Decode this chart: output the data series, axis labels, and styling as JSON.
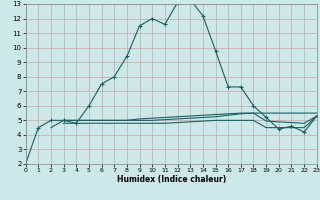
{
  "xlabel": "Humidex (Indice chaleur)",
  "bg_color": "#cce8e8",
  "grid_color": "#c8a8a8",
  "line_color": "#1a6060",
  "xlim": [
    0,
    23
  ],
  "ylim": [
    2,
    13
  ],
  "xticks": [
    0,
    1,
    2,
    3,
    4,
    5,
    6,
    7,
    8,
    9,
    10,
    11,
    12,
    13,
    14,
    15,
    16,
    17,
    18,
    19,
    20,
    21,
    22,
    23
  ],
  "yticks": [
    2,
    3,
    4,
    5,
    6,
    7,
    8,
    9,
    10,
    11,
    12,
    13
  ],
  "main_x": [
    0,
    1,
    2,
    3,
    4,
    5,
    6,
    7,
    8,
    9,
    10,
    11,
    12,
    13,
    14,
    15,
    16,
    17,
    18,
    19,
    20,
    21,
    22,
    23
  ],
  "main_y": [
    2.0,
    4.5,
    5.0,
    5.0,
    4.8,
    6.0,
    7.5,
    8.0,
    9.4,
    11.5,
    12.0,
    11.6,
    13.1,
    13.3,
    12.2,
    9.8,
    7.3,
    7.3,
    6.0,
    5.2,
    4.4,
    4.6,
    4.2,
    5.3
  ],
  "flat1_x": [
    2,
    3,
    4,
    5,
    6,
    7,
    8,
    9,
    10,
    11,
    12,
    13,
    14,
    15,
    16,
    17,
    18,
    19,
    20,
    21,
    22,
    23
  ],
  "flat1_y": [
    4.5,
    5.0,
    5.0,
    5.0,
    5.0,
    5.0,
    5.0,
    5.0,
    5.0,
    5.05,
    5.1,
    5.15,
    5.2,
    5.25,
    5.35,
    5.45,
    5.5,
    5.5,
    5.5,
    5.5,
    5.5,
    5.5
  ],
  "flat2_x": [
    3,
    4,
    5,
    6,
    7,
    8,
    9,
    10,
    11,
    12,
    13,
    14,
    15,
    16,
    17,
    18,
    19,
    20,
    21,
    22,
    23
  ],
  "flat2_y": [
    4.8,
    4.8,
    4.8,
    4.8,
    4.8,
    4.8,
    4.8,
    4.8,
    4.8,
    4.85,
    4.9,
    4.95,
    5.0,
    5.0,
    5.0,
    5.0,
    4.5,
    4.5,
    4.5,
    4.5,
    5.3
  ],
  "flat3_x": [
    3,
    4,
    5,
    6,
    7,
    8,
    9,
    10,
    11,
    12,
    13,
    14,
    15,
    16,
    17,
    18,
    19,
    20,
    21,
    22,
    23
  ],
  "flat3_y": [
    5.0,
    5.0,
    5.0,
    5.0,
    5.0,
    5.0,
    5.1,
    5.15,
    5.2,
    5.25,
    5.3,
    5.35,
    5.4,
    5.45,
    5.5,
    5.5,
    4.95,
    4.9,
    4.85,
    4.8,
    5.3
  ]
}
